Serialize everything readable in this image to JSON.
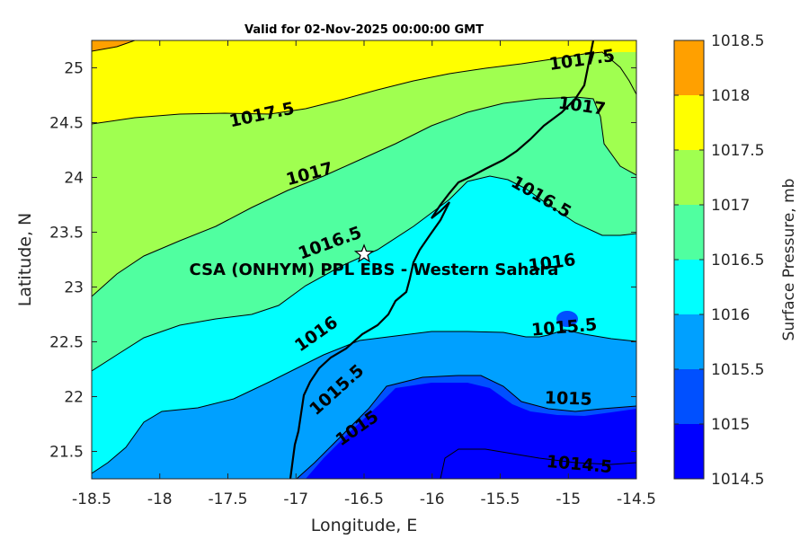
{
  "chart_data": {
    "type": "contour_map",
    "title": "Valid for 02-Nov-2025 00:00:00 GMT",
    "xlabel": "Longitude, E",
    "ylabel": "Latitude, N",
    "xlim": [
      -18.5,
      -14.5
    ],
    "ylim": [
      21.25,
      25.25
    ],
    "xticks": [
      -18.5,
      -18,
      -17.5,
      -17,
      -16.5,
      -16,
      -15.5,
      -15,
      -14.5
    ],
    "xtick_labels": [
      "-18.5",
      "-18",
      "-17.5",
      "-17",
      "-16.5",
      "-16",
      "-15.5",
      "-15",
      "-14.5"
    ],
    "yticks": [
      21.5,
      22,
      22.5,
      23,
      23.5,
      24,
      24.5,
      25
    ],
    "ytick_labels": [
      "21.5",
      "22",
      "22.5",
      "23",
      "23.5",
      "24",
      "24.5",
      "25"
    ],
    "colorbar": {
      "label": "Surface Pressure, mb",
      "levels": [
        1014.5,
        1015,
        1015.5,
        1016,
        1016.5,
        1017,
        1017.5,
        1018,
        1018.5
      ],
      "tick_labels": [
        "1014.5",
        "1015",
        "1015.5",
        "1016",
        "1016.5",
        "1017",
        "1017.5",
        "1018",
        "1018.5"
      ],
      "colors": [
        "#0000ff",
        "#0050ff",
        "#00a0ff",
        "#00ffff",
        "#50ffa0",
        "#a0ff50",
        "#ffff00",
        "#ffa000",
        "#ff5000"
      ]
    },
    "contour_labels": [
      {
        "text": "1017.5",
        "lon": -14.9,
        "lat": 25.07
      },
      {
        "text": "1017.5",
        "lon": -17.25,
        "lat": 24.57
      },
      {
        "text": "1017",
        "lon": -14.9,
        "lat": 24.65
      },
      {
        "text": "1017",
        "lon": -16.9,
        "lat": 24.03
      },
      {
        "text": "1016.5",
        "lon": -15.2,
        "lat": 23.82
      },
      {
        "text": "1016.5",
        "lon": -16.75,
        "lat": 23.4
      },
      {
        "text": "1016",
        "lon": -15.12,
        "lat": 23.22
      },
      {
        "text": "1016",
        "lon": -16.85,
        "lat": 22.57
      },
      {
        "text": "1015.5",
        "lon": -15.03,
        "lat": 22.63
      },
      {
        "text": "1015.5",
        "lon": -16.7,
        "lat": 22.06
      },
      {
        "text": "1015",
        "lon": -15.0,
        "lat": 21.98
      },
      {
        "text": "1015",
        "lon": -16.55,
        "lat": 21.71
      },
      {
        "text": "1014.5",
        "lon": -14.92,
        "lat": 21.38
      }
    ],
    "station": {
      "name": "CSA (ONHYM) PPL EBS  - Western Sahara",
      "lon": -16.5,
      "lat": 23.3,
      "marker": "star"
    }
  }
}
